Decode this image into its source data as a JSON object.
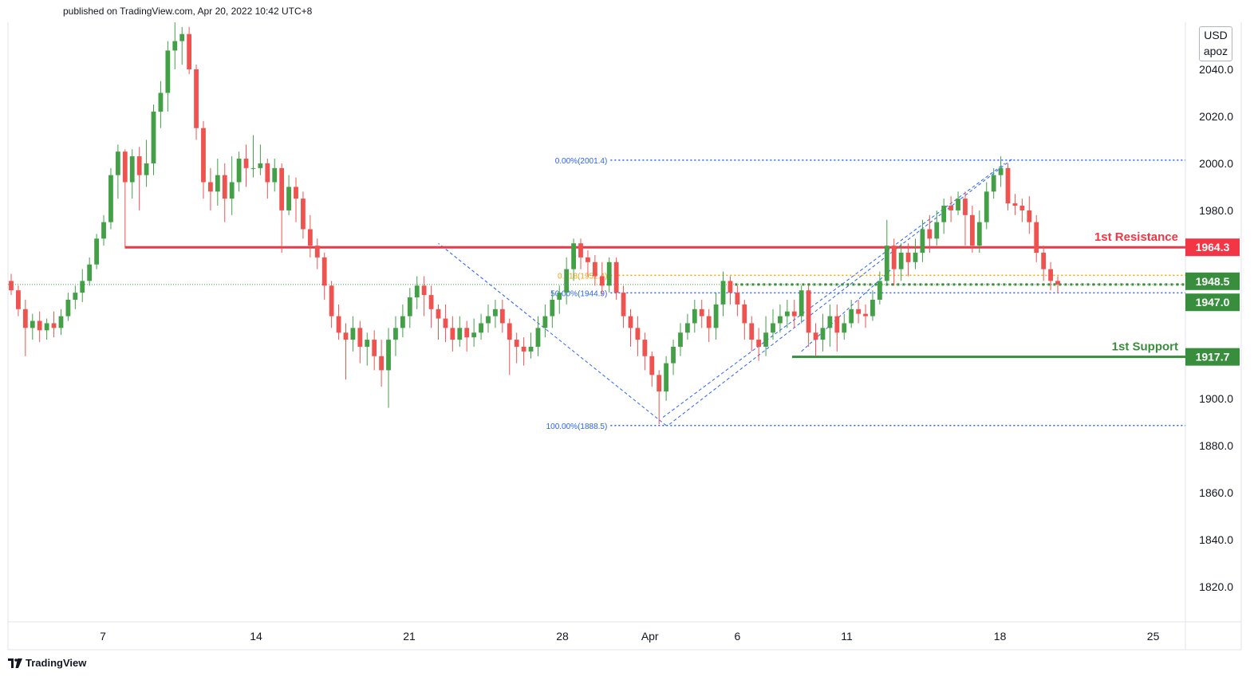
{
  "header": {
    "published_text": "published on TradingView.com, Apr 20, 2022 10:42 UTC+8"
  },
  "unit_box": {
    "line1": "USD",
    "line2": "apoz"
  },
  "footer": {
    "brand": "TradingView",
    "icon": "tradingview-logo-icon"
  },
  "colors": {
    "up": "#26a69a",
    "up_body": "#43a047",
    "down": "#ef5350",
    "resistance": "#f23645",
    "support": "#388e3c",
    "fib": "#2962ff",
    "fib_orange": "#f0a30a",
    "grid_text": "#131722",
    "axis_border": "#e0e3eb"
  },
  "chart_data": {
    "type": "candlestick",
    "ylim": [
      1805,
      2060
    ],
    "y_ticks": [
      {
        "value": 2040,
        "label": "2040.0"
      },
      {
        "value": 2020,
        "label": "2020.0"
      },
      {
        "value": 2000,
        "label": "2000.0"
      },
      {
        "value": 1980,
        "label": "1980.0"
      },
      {
        "value": 1900,
        "label": "1900.0"
      },
      {
        "value": 1880,
        "label": "1880.0"
      },
      {
        "value": 1860,
        "label": "1860.0"
      },
      {
        "value": 1840,
        "label": "1840.0"
      },
      {
        "value": 1820,
        "label": "1820.0"
      }
    ],
    "x_ticks": [
      {
        "day": 7,
        "label": "7"
      },
      {
        "day": 14,
        "label": "14"
      },
      {
        "day": 21,
        "label": "21"
      },
      {
        "day": 28,
        "label": "28"
      },
      {
        "day": 32,
        "label": "Apr"
      },
      {
        "day": 36,
        "label": "6"
      },
      {
        "day": 41,
        "label": "11"
      },
      {
        "day": 48,
        "label": "18"
      },
      {
        "day": 55,
        "label": "25"
      }
    ],
    "price_labels": [
      {
        "value": 1964.3,
        "label": "1964.3",
        "kind": "resistance"
      },
      {
        "value": 1948.5,
        "label": "1948.5",
        "kind": "support"
      },
      {
        "value": 1947.0,
        "label": "1947.0",
        "kind": "support"
      },
      {
        "value": 1917.7,
        "label": "1917.7",
        "kind": "support"
      }
    ],
    "levels": [
      {
        "name": "1st Resistance",
        "value": 1964.3,
        "kind": "resistance",
        "from_day": 8
      },
      {
        "name": "1st Support",
        "value": 1917.7,
        "kind": "support",
        "from_day": 38.5
      }
    ],
    "fib": [
      {
        "label": "0.00%(2001.4)",
        "value": 2001.4,
        "color": "fib"
      },
      {
        "label": "0.618(1952.4)",
        "value": 1952.4,
        "color": "fib_orange"
      },
      {
        "label": "50.00%(1944.9)",
        "value": 1944.9,
        "color": "fib"
      },
      {
        "label": "100.00%(1888.5)",
        "value": 1888.5,
        "color": "fib"
      }
    ],
    "fib_from_day": 30.2,
    "support_dotted": {
      "value": 1947.0,
      "from_day": 36
    },
    "last_close": 1948.5,
    "candles": [
      [
        1950,
        1946,
        1953,
        1944
      ],
      [
        1946,
        1938,
        1948,
        1935
      ],
      [
        1938,
        1930,
        1942,
        1918
      ],
      [
        1930,
        1933,
        1936,
        1925
      ],
      [
        1933,
        1929,
        1937,
        1924
      ],
      [
        1929,
        1932,
        1934,
        1925
      ],
      [
        1932,
        1930,
        1937,
        1926
      ],
      [
        1930,
        1935,
        1938,
        1927
      ],
      [
        1935,
        1942,
        1945,
        1933
      ],
      [
        1942,
        1945,
        1948,
        1938
      ],
      [
        1945,
        1950,
        1955,
        1941
      ],
      [
        1950,
        1957,
        1960,
        1948
      ],
      [
        1957,
        1968,
        1970,
        1955
      ],
      [
        1968,
        1975,
        1978,
        1965
      ],
      [
        1975,
        1995,
        1998,
        1972
      ],
      [
        1995,
        2005,
        2008,
        1985
      ],
      [
        2005,
        1992,
        2006,
        1964
      ],
      [
        1992,
        2003,
        2006,
        1985
      ],
      [
        2003,
        1995,
        2007,
        1980
      ],
      [
        1995,
        2000,
        2010,
        1990
      ],
      [
        2000,
        2022,
        2025,
        1995
      ],
      [
        2022,
        2030,
        2035,
        2015
      ],
      [
        2030,
        2048,
        2052,
        2022
      ],
      [
        2048,
        2052,
        2060,
        2040
      ],
      [
        2052,
        2055,
        2058,
        2042
      ],
      [
        2055,
        2040,
        2058,
        2038
      ],
      [
        2040,
        2015,
        2042,
        2010
      ],
      [
        2015,
        1992,
        2018,
        1985
      ],
      [
        1992,
        1988,
        1998,
        1980
      ],
      [
        1988,
        1995,
        2002,
        1982
      ],
      [
        1995,
        1985,
        2000,
        1975
      ],
      [
        1985,
        1992,
        2003,
        1978
      ],
      [
        1992,
        2002,
        2005,
        1988
      ],
      [
        2002,
        1998,
        2008,
        1990
      ],
      [
        1998,
        1998,
        2012,
        1994
      ],
      [
        1998,
        2000,
        2008,
        1995
      ],
      [
        2000,
        1992,
        2002,
        1985
      ],
      [
        1992,
        1998,
        2002,
        1988
      ],
      [
        1998,
        1980,
        2000,
        1962
      ],
      [
        1980,
        1990,
        1995,
        1978
      ],
      [
        1990,
        1985,
        1994,
        1975
      ],
      [
        1985,
        1972,
        1988,
        1968
      ],
      [
        1972,
        1965,
        1978,
        1960
      ],
      [
        1965,
        1960,
        1968,
        1955
      ],
      [
        1960,
        1948,
        1962,
        1942
      ],
      [
        1948,
        1935,
        1950,
        1930
      ],
      [
        1935,
        1928,
        1940,
        1925
      ],
      [
        1928,
        1925,
        1932,
        1908
      ],
      [
        1925,
        1930,
        1935,
        1920
      ],
      [
        1930,
        1922,
        1933,
        1915
      ],
      [
        1922,
        1925,
        1928,
        1914
      ],
      [
        1925,
        1918,
        1929,
        1912
      ],
      [
        1918,
        1912,
        1925,
        1905
      ],
      [
        1912,
        1925,
        1930,
        1896
      ],
      [
        1925,
        1930,
        1935,
        1918
      ],
      [
        1930,
        1935,
        1940,
        1926
      ],
      [
        1935,
        1943,
        1947,
        1930
      ],
      [
        1943,
        1948,
        1952,
        1938
      ],
      [
        1948,
        1944,
        1952,
        1935
      ],
      [
        1944,
        1938,
        1948,
        1930
      ],
      [
        1938,
        1934,
        1940,
        1925
      ],
      [
        1934,
        1930,
        1940,
        1924
      ],
      [
        1930,
        1925,
        1935,
        1920
      ],
      [
        1925,
        1930,
        1935,
        1922
      ],
      [
        1930,
        1926,
        1933,
        1920
      ],
      [
        1926,
        1928,
        1934,
        1922
      ],
      [
        1928,
        1932,
        1936,
        1925
      ],
      [
        1932,
        1935,
        1940,
        1928
      ],
      [
        1935,
        1938,
        1942,
        1930
      ],
      [
        1938,
        1932,
        1942,
        1928
      ],
      [
        1932,
        1925,
        1934,
        1910
      ],
      [
        1925,
        1922,
        1928,
        1915
      ],
      [
        1922,
        1920,
        1926,
        1914
      ],
      [
        1920,
        1922,
        1928,
        1917
      ],
      [
        1922,
        1930,
        1935,
        1918
      ],
      [
        1930,
        1935,
        1940,
        1926
      ],
      [
        1935,
        1942,
        1946,
        1930
      ],
      [
        1942,
        1945,
        1948,
        1936
      ],
      [
        1945,
        1955,
        1960,
        1940
      ],
      [
        1955,
        1966,
        1968,
        1950
      ],
      [
        1966,
        1960,
        1968,
        1955
      ],
      [
        1960,
        1958,
        1963,
        1952
      ],
      [
        1958,
        1952,
        1961,
        1948
      ],
      [
        1952,
        1948,
        1958,
        1944
      ],
      [
        1948,
        1958,
        1960,
        1945
      ],
      [
        1958,
        1945,
        1960,
        1942
      ],
      [
        1945,
        1935,
        1948,
        1930
      ],
      [
        1935,
        1930,
        1938,
        1922
      ],
      [
        1930,
        1925,
        1935,
        1918
      ],
      [
        1925,
        1918,
        1928,
        1912
      ],
      [
        1918,
        1910,
        1920,
        1905
      ],
      [
        1910,
        1903,
        1912,
        1889
      ],
      [
        1903,
        1915,
        1918,
        1899
      ],
      [
        1915,
        1922,
        1925,
        1910
      ],
      [
        1922,
        1928,
        1932,
        1918
      ],
      [
        1928,
        1932,
        1936,
        1925
      ],
      [
        1932,
        1938,
        1942,
        1928
      ],
      [
        1938,
        1935,
        1942,
        1930
      ],
      [
        1935,
        1930,
        1938,
        1924
      ],
      [
        1930,
        1940,
        1945,
        1925
      ],
      [
        1940,
        1950,
        1954,
        1935
      ],
      [
        1950,
        1945,
        1952,
        1940
      ],
      [
        1945,
        1940,
        1948,
        1935
      ],
      [
        1940,
        1932,
        1942,
        1925
      ],
      [
        1932,
        1925,
        1935,
        1920
      ],
      [
        1925,
        1922,
        1930,
        1916
      ],
      [
        1922,
        1928,
        1935,
        1918
      ],
      [
        1928,
        1932,
        1938,
        1925
      ],
      [
        1932,
        1935,
        1940,
        1928
      ],
      [
        1935,
        1937,
        1942,
        1930
      ],
      [
        1937,
        1935,
        1942,
        1930
      ],
      [
        1935,
        1946,
        1948,
        1932
      ],
      [
        1946,
        1928,
        1948,
        1922
      ],
      [
        1928,
        1925,
        1932,
        1918
      ],
      [
        1925,
        1930,
        1936,
        1920
      ],
      [
        1930,
        1935,
        1940,
        1922
      ],
      [
        1935,
        1928,
        1940,
        1920
      ],
      [
        1928,
        1932,
        1936,
        1925
      ],
      [
        1932,
        1938,
        1942,
        1930
      ],
      [
        1938,
        1936,
        1942,
        1932
      ],
      [
        1936,
        1935,
        1940,
        1930
      ],
      [
        1935,
        1942,
        1946,
        1933
      ],
      [
        1942,
        1950,
        1954,
        1940
      ],
      [
        1950,
        1965,
        1976,
        1948
      ],
      [
        1965,
        1955,
        1968,
        1948
      ],
      [
        1955,
        1962,
        1966,
        1950
      ],
      [
        1962,
        1958,
        1966,
        1952
      ],
      [
        1958,
        1962,
        1968,
        1955
      ],
      [
        1962,
        1972,
        1976,
        1958
      ],
      [
        1972,
        1968,
        1978,
        1962
      ],
      [
        1968,
        1975,
        1980,
        1965
      ],
      [
        1975,
        1982,
        1985,
        1970
      ],
      [
        1982,
        1980,
        1986,
        1975
      ],
      [
        1980,
        1985,
        1988,
        1978
      ],
      [
        1985,
        1978,
        1988,
        1965
      ],
      [
        1978,
        1965,
        1982,
        1962
      ],
      [
        1965,
        1975,
        1980,
        1962
      ],
      [
        1975,
        1988,
        1992,
        1972
      ],
      [
        1988,
        1995,
        1998,
        1985
      ],
      [
        1995,
        1998,
        2003,
        1990
      ],
      [
        1998,
        1983,
        2000,
        1980
      ],
      [
        1983,
        1982,
        1987,
        1978
      ],
      [
        1982,
        1980,
        1985,
        1975
      ],
      [
        1980,
        1975,
        1986,
        1970
      ],
      [
        1975,
        1962,
        1978,
        1958
      ],
      [
        1962,
        1955,
        1965,
        1950
      ],
      [
        1955,
        1950,
        1958,
        1946
      ],
      [
        1950,
        1948.5,
        1952,
        1945
      ]
    ]
  }
}
